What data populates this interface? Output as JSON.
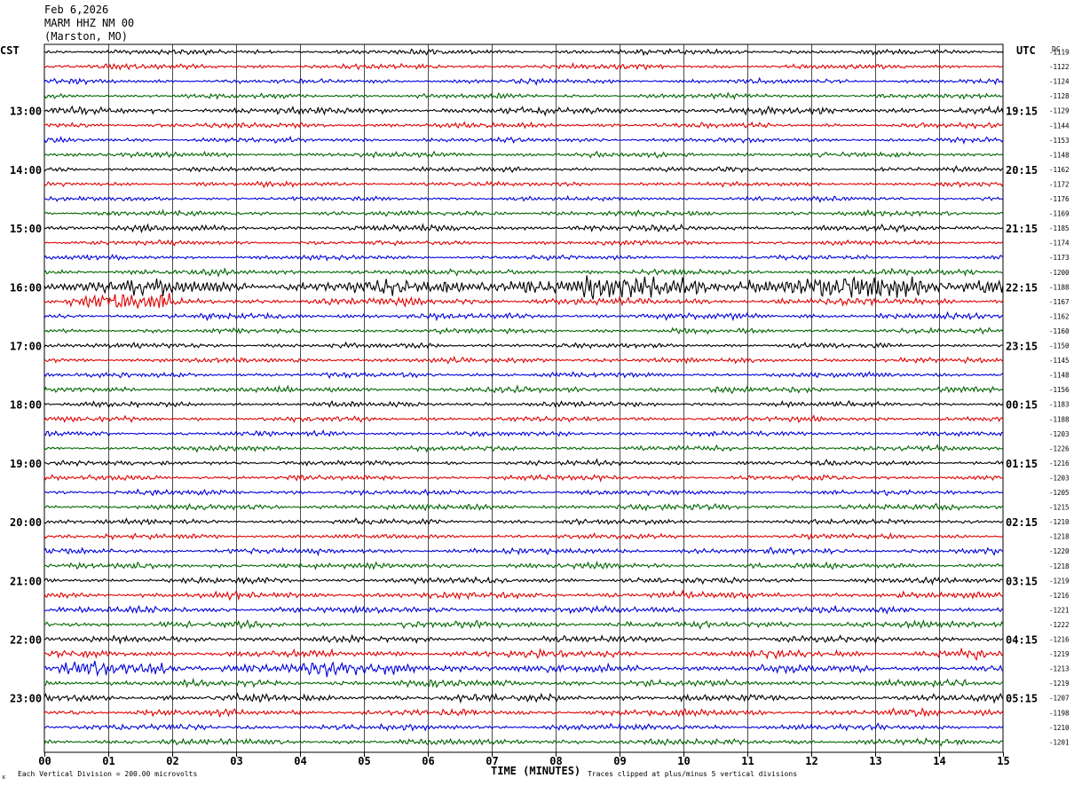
{
  "header": {
    "date": "Feb 6,2026",
    "station": "MARM HHZ NM 00",
    "location": "(Marston, MO)"
  },
  "labels": {
    "left_zone": "CST",
    "right_zone": "UTC",
    "dc_header": "DC",
    "xlabel": "TIME (MINUTES)",
    "scale_note": "Each Vertical Division =  200.00 microvolts",
    "clip_note": "Traces clipped at plus/minus 5 vertical divisions",
    "corner_mark": "x"
  },
  "chart_data": {
    "type": "line",
    "title": "MARM HHZ NM 00",
    "xlabel": "TIME (MINUTES)",
    "ylabel": "",
    "xlim": [
      0,
      15
    ],
    "x_ticks": [
      "00",
      "01",
      "02",
      "03",
      "04",
      "05",
      "06",
      "07",
      "08",
      "09",
      "10",
      "11",
      "12",
      "13",
      "14",
      "15"
    ],
    "grid": true,
    "trace_count": 48,
    "minutes_per_trace": 15,
    "trace_colors": [
      "#000000",
      "#e00000",
      "#0000dd",
      "#006600"
    ],
    "left_hour_labels": [
      "13:00",
      "14:00",
      "15:00",
      "16:00",
      "17:00",
      "18:00",
      "19:00",
      "20:00",
      "21:00",
      "22:00",
      "23:00"
    ],
    "right_hour_labels": [
      "19:15",
      "20:15",
      "21:15",
      "22:15",
      "23:15",
      "00:15",
      "01:15",
      "02:15",
      "03:15",
      "04:15",
      "05:15"
    ],
    "first_hour_label_trace": 4,
    "dc_offsets": [
      -1119,
      -1122,
      -1124,
      -1128,
      -1129,
      -1144,
      -1153,
      -1148,
      -1162,
      -1172,
      -1176,
      -1169,
      -1185,
      -1174,
      -1173,
      -1200,
      -1188,
      -1167,
      -1162,
      -1160,
      -1150,
      -1145,
      -1148,
      -1156,
      -1183,
      -1188,
      -1203,
      -1226,
      -1216,
      -1203,
      -1205,
      -1215,
      -1210,
      -1218,
      -1220,
      -1218,
      -1219,
      -1216,
      -1221,
      -1222,
      -1216,
      -1219,
      -1213,
      -1219,
      -1207,
      -1198,
      -1210,
      -1201
    ],
    "amplitude_divisions": [
      0.35,
      0.35,
      0.32,
      0.32,
      0.5,
      0.35,
      0.32,
      0.35,
      0.32,
      0.32,
      0.3,
      0.35,
      0.42,
      0.32,
      0.32,
      0.4,
      1.0,
      0.5,
      0.4,
      0.35,
      0.35,
      0.35,
      0.35,
      0.4,
      0.35,
      0.35,
      0.35,
      0.35,
      0.35,
      0.35,
      0.35,
      0.4,
      0.35,
      0.35,
      0.4,
      0.4,
      0.4,
      0.45,
      0.45,
      0.45,
      0.45,
      0.5,
      0.55,
      0.45,
      0.5,
      0.45,
      0.42,
      0.42
    ],
    "events": [
      {
        "trace": 16,
        "start_min": 6.8,
        "end_min": 15,
        "gain": 1.6,
        "label": ""
      },
      {
        "trace": 17,
        "start_min": 0.3,
        "end_min": 2.0,
        "gain": 2.2,
        "label": ""
      },
      {
        "trace": 42,
        "start_min": 0.1,
        "end_min": 6.6,
        "gain": 1.7,
        "label": ""
      },
      {
        "trace": 41,
        "start_min": 13.9,
        "end_min": 14.6,
        "gain": 2.0,
        "label": ""
      }
    ]
  }
}
